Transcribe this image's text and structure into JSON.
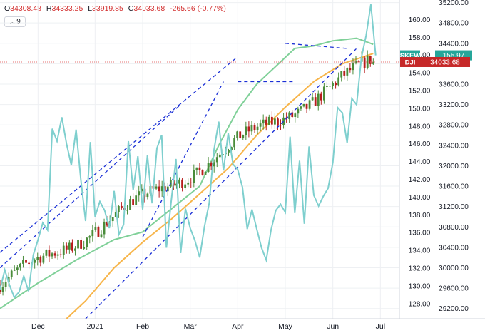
{
  "ohlc": {
    "o_label": "O",
    "o_value": "34308.48",
    "h_label": "H",
    "h_value": "34333.25",
    "l_label": "L",
    "l_value": "33919.85",
    "c_label": "C",
    "c_value": "34033.68",
    "change": "-265.66 (-0.77%)"
  },
  "indicator_count": "9",
  "chart_data": {
    "type": "line",
    "title": "",
    "x_months": [
      {
        "label": "Dec",
        "t": 0.8
      },
      {
        "label": "2021",
        "t": 2.0
      },
      {
        "label": "Feb",
        "t": 3.0
      },
      {
        "label": "Mar",
        "t": 4.0
      },
      {
        "label": "Apr",
        "t": 5.0
      },
      {
        "label": "May",
        "t": 6.0
      },
      {
        "label": "Jun",
        "t": 7.0
      },
      {
        "label": "Jul",
        "t": 8.0
      }
    ],
    "x_range": [
      0,
      8.4
    ],
    "left_axis": {
      "series": "SKEW",
      "ticks": [
        "128.00",
        "130.00",
        "132.00",
        "134.00",
        "136.00",
        "138.00",
        "140.00",
        "142.00",
        "144.00",
        "146.00",
        "148.00",
        "150.00",
        "152.00",
        "154.00",
        "156.00",
        "158.00",
        "160.00"
      ],
      "range": [
        126.3,
        162.2
      ]
    },
    "right_axis": {
      "series": "DJI",
      "ticks": [
        "29200.00",
        "29600.00",
        "30000.00",
        "30400.00",
        "30800.00",
        "31200.00",
        "31600.00",
        "32000.00",
        "32400.00",
        "32800.00",
        "33200.00",
        "33600.00",
        "34000.00",
        "34400.00",
        "34800.00",
        "35200.00"
      ],
      "range": [
        29000,
        35250
      ]
    },
    "series": [
      {
        "name": "SKEW",
        "color": "#7ecfce",
        "axis": "left",
        "points": [
          [
            0.0,
            129.6
          ],
          [
            0.1,
            131.8
          ],
          [
            0.2,
            130.1
          ],
          [
            0.3,
            128.7
          ],
          [
            0.4,
            129.3
          ],
          [
            0.5,
            131.1
          ],
          [
            0.6,
            129.4
          ],
          [
            0.7,
            133.5
          ],
          [
            0.8,
            135.2
          ],
          [
            0.9,
            137.1
          ],
          [
            1.0,
            136.3
          ],
          [
            1.1,
            147.7
          ],
          [
            1.2,
            146.3
          ],
          [
            1.3,
            149.0
          ],
          [
            1.4,
            146.0
          ],
          [
            1.5,
            143.6
          ],
          [
            1.6,
            147.6
          ],
          [
            1.7,
            142.0
          ],
          [
            1.8,
            137.3
          ],
          [
            1.9,
            146.2
          ],
          [
            2.0,
            137.8
          ],
          [
            2.1,
            139.5
          ],
          [
            2.2,
            138.5
          ],
          [
            2.3,
            136.5
          ],
          [
            2.4,
            140.7
          ],
          [
            2.5,
            135.8
          ],
          [
            2.6,
            136.9
          ],
          [
            2.7,
            146.3
          ],
          [
            2.8,
            140.8
          ],
          [
            2.9,
            144.6
          ],
          [
            3.0,
            138.6
          ],
          [
            3.1,
            144.7
          ],
          [
            3.2,
            139.3
          ],
          [
            3.3,
            145.5
          ],
          [
            3.4,
            147.0
          ],
          [
            3.5,
            134.3
          ],
          [
            3.6,
            139.5
          ],
          [
            3.7,
            144.3
          ],
          [
            3.8,
            133.7
          ],
          [
            3.9,
            138.7
          ],
          [
            4.0,
            136.5
          ],
          [
            4.1,
            135.1
          ],
          [
            4.2,
            133.2
          ],
          [
            4.3,
            136.7
          ],
          [
            4.4,
            139.3
          ],
          [
            4.5,
            145.3
          ],
          [
            4.6,
            148.5
          ],
          [
            4.7,
            143.0
          ],
          [
            4.8,
            147.2
          ],
          [
            4.9,
            143.7
          ],
          [
            5.0,
            143.1
          ],
          [
            5.1,
            141.1
          ],
          [
            5.2,
            136.4
          ],
          [
            5.3,
            138.6
          ],
          [
            5.4,
            136.4
          ],
          [
            5.5,
            134.3
          ],
          [
            5.6,
            132.9
          ],
          [
            5.7,
            136.3
          ],
          [
            5.8,
            138.5
          ],
          [
            5.9,
            139.2
          ],
          [
            6.0,
            138.3
          ],
          [
            6.1,
            146.8
          ],
          [
            6.2,
            138.2
          ],
          [
            6.3,
            144.1
          ],
          [
            6.4,
            137.0
          ],
          [
            6.5,
            145.7
          ],
          [
            6.6,
            140.2
          ],
          [
            6.7,
            139.0
          ],
          [
            6.8,
            140.1
          ],
          [
            6.9,
            141.0
          ],
          [
            7.0,
            143.9
          ],
          [
            7.1,
            150.1
          ],
          [
            7.2,
            149.5
          ],
          [
            7.3,
            146.1
          ],
          [
            7.4,
            151.1
          ],
          [
            7.5,
            150.4
          ],
          [
            7.6,
            155.7
          ],
          [
            7.7,
            158.2
          ],
          [
            7.8,
            161.7
          ],
          [
            7.9,
            155.97
          ]
        ]
      },
      {
        "name": "DJI",
        "color": "#b71c1c",
        "axis": "right",
        "candles_from": [
          0.0,
          29650
        ],
        "candles_to": [
          7.85,
          34033.68
        ],
        "last_value": "34033.68"
      }
    ],
    "moving_averages": [
      {
        "color": "#7fd098",
        "axis": "right",
        "points": [
          [
            0.0,
            29200
          ],
          [
            0.8,
            29700
          ],
          [
            1.6,
            30150
          ],
          [
            2.4,
            30550
          ],
          [
            3.0,
            30700
          ],
          [
            3.6,
            31150
          ],
          [
            4.2,
            31600
          ],
          [
            4.6,
            32400
          ],
          [
            5.0,
            33100
          ],
          [
            5.4,
            33600
          ],
          [
            5.8,
            33950
          ],
          [
            6.2,
            34300
          ],
          [
            6.6,
            34350
          ],
          [
            7.0,
            34450
          ],
          [
            7.5,
            34500
          ],
          [
            7.85,
            34380
          ]
        ]
      },
      {
        "color": "#f7b54a",
        "axis": "right",
        "points": [
          [
            1.4,
            29000
          ],
          [
            1.8,
            29350
          ],
          [
            2.4,
            30000
          ],
          [
            3.0,
            30500
          ],
          [
            3.6,
            30950
          ],
          [
            4.2,
            31450
          ],
          [
            4.8,
            31950
          ],
          [
            5.4,
            32600
          ],
          [
            6.0,
            33150
          ],
          [
            6.6,
            33650
          ],
          [
            7.2,
            34000
          ],
          [
            7.85,
            34200
          ]
        ]
      }
    ],
    "trendlines": [
      {
        "color": "#1a2fd6",
        "axis": "right",
        "from": [
          0.0,
          30300
        ],
        "to": [
          4.95,
          34100
        ]
      },
      {
        "color": "#1a2fd6",
        "axis": "right",
        "from": [
          0.0,
          30000
        ],
        "to": [
          3.8,
          33200
        ]
      },
      {
        "color": "#1a2fd6",
        "axis": "right",
        "from": [
          1.8,
          29000
        ],
        "to": [
          7.5,
          34300
        ]
      },
      {
        "color": "#1a2fd6",
        "axis": "right",
        "from": [
          5.0,
          33650
        ],
        "to": [
          6.2,
          33650
        ]
      },
      {
        "color": "#1a2fd6",
        "axis": "right",
        "from": [
          6.0,
          34400
        ],
        "to": [
          7.3,
          34300
        ]
      },
      {
        "color": "#1a2fd6",
        "axis": "right",
        "from": [
          3.0,
          30600
        ],
        "to": [
          4.7,
          33650
        ]
      }
    ],
    "last_labels": [
      {
        "name": "SKEW",
        "value": "155.97",
        "color": "#26a69a"
      },
      {
        "name": "DJI",
        "value": "34033.68",
        "color": "#c62828"
      }
    ],
    "grid": true
  }
}
